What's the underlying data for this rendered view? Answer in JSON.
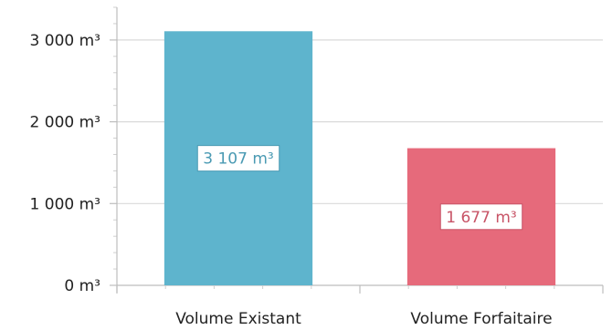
{
  "chart_data": {
    "type": "bar",
    "categories": [
      "Volume Existant",
      "Volume Forfaitaire"
    ],
    "values": [
      3107,
      1677
    ],
    "unit": "m³",
    "ylim": [
      0,
      3400
    ],
    "y_ticks": [
      {
        "value": 0,
        "label": "0 m³"
      },
      {
        "value": 1000,
        "label": "1 000 m³"
      },
      {
        "value": 2000,
        "label": "2 000 m³"
      },
      {
        "value": 3000,
        "label": "3 000 m³"
      }
    ],
    "data_labels": [
      "3 107 m³",
      "1 677 m³"
    ],
    "colors": [
      "#5eb4cd",
      "#e66a7b"
    ],
    "label_text_colors": [
      "#4a9ab3",
      "#c85467"
    ],
    "grid": "horizontal",
    "legend": "none"
  }
}
